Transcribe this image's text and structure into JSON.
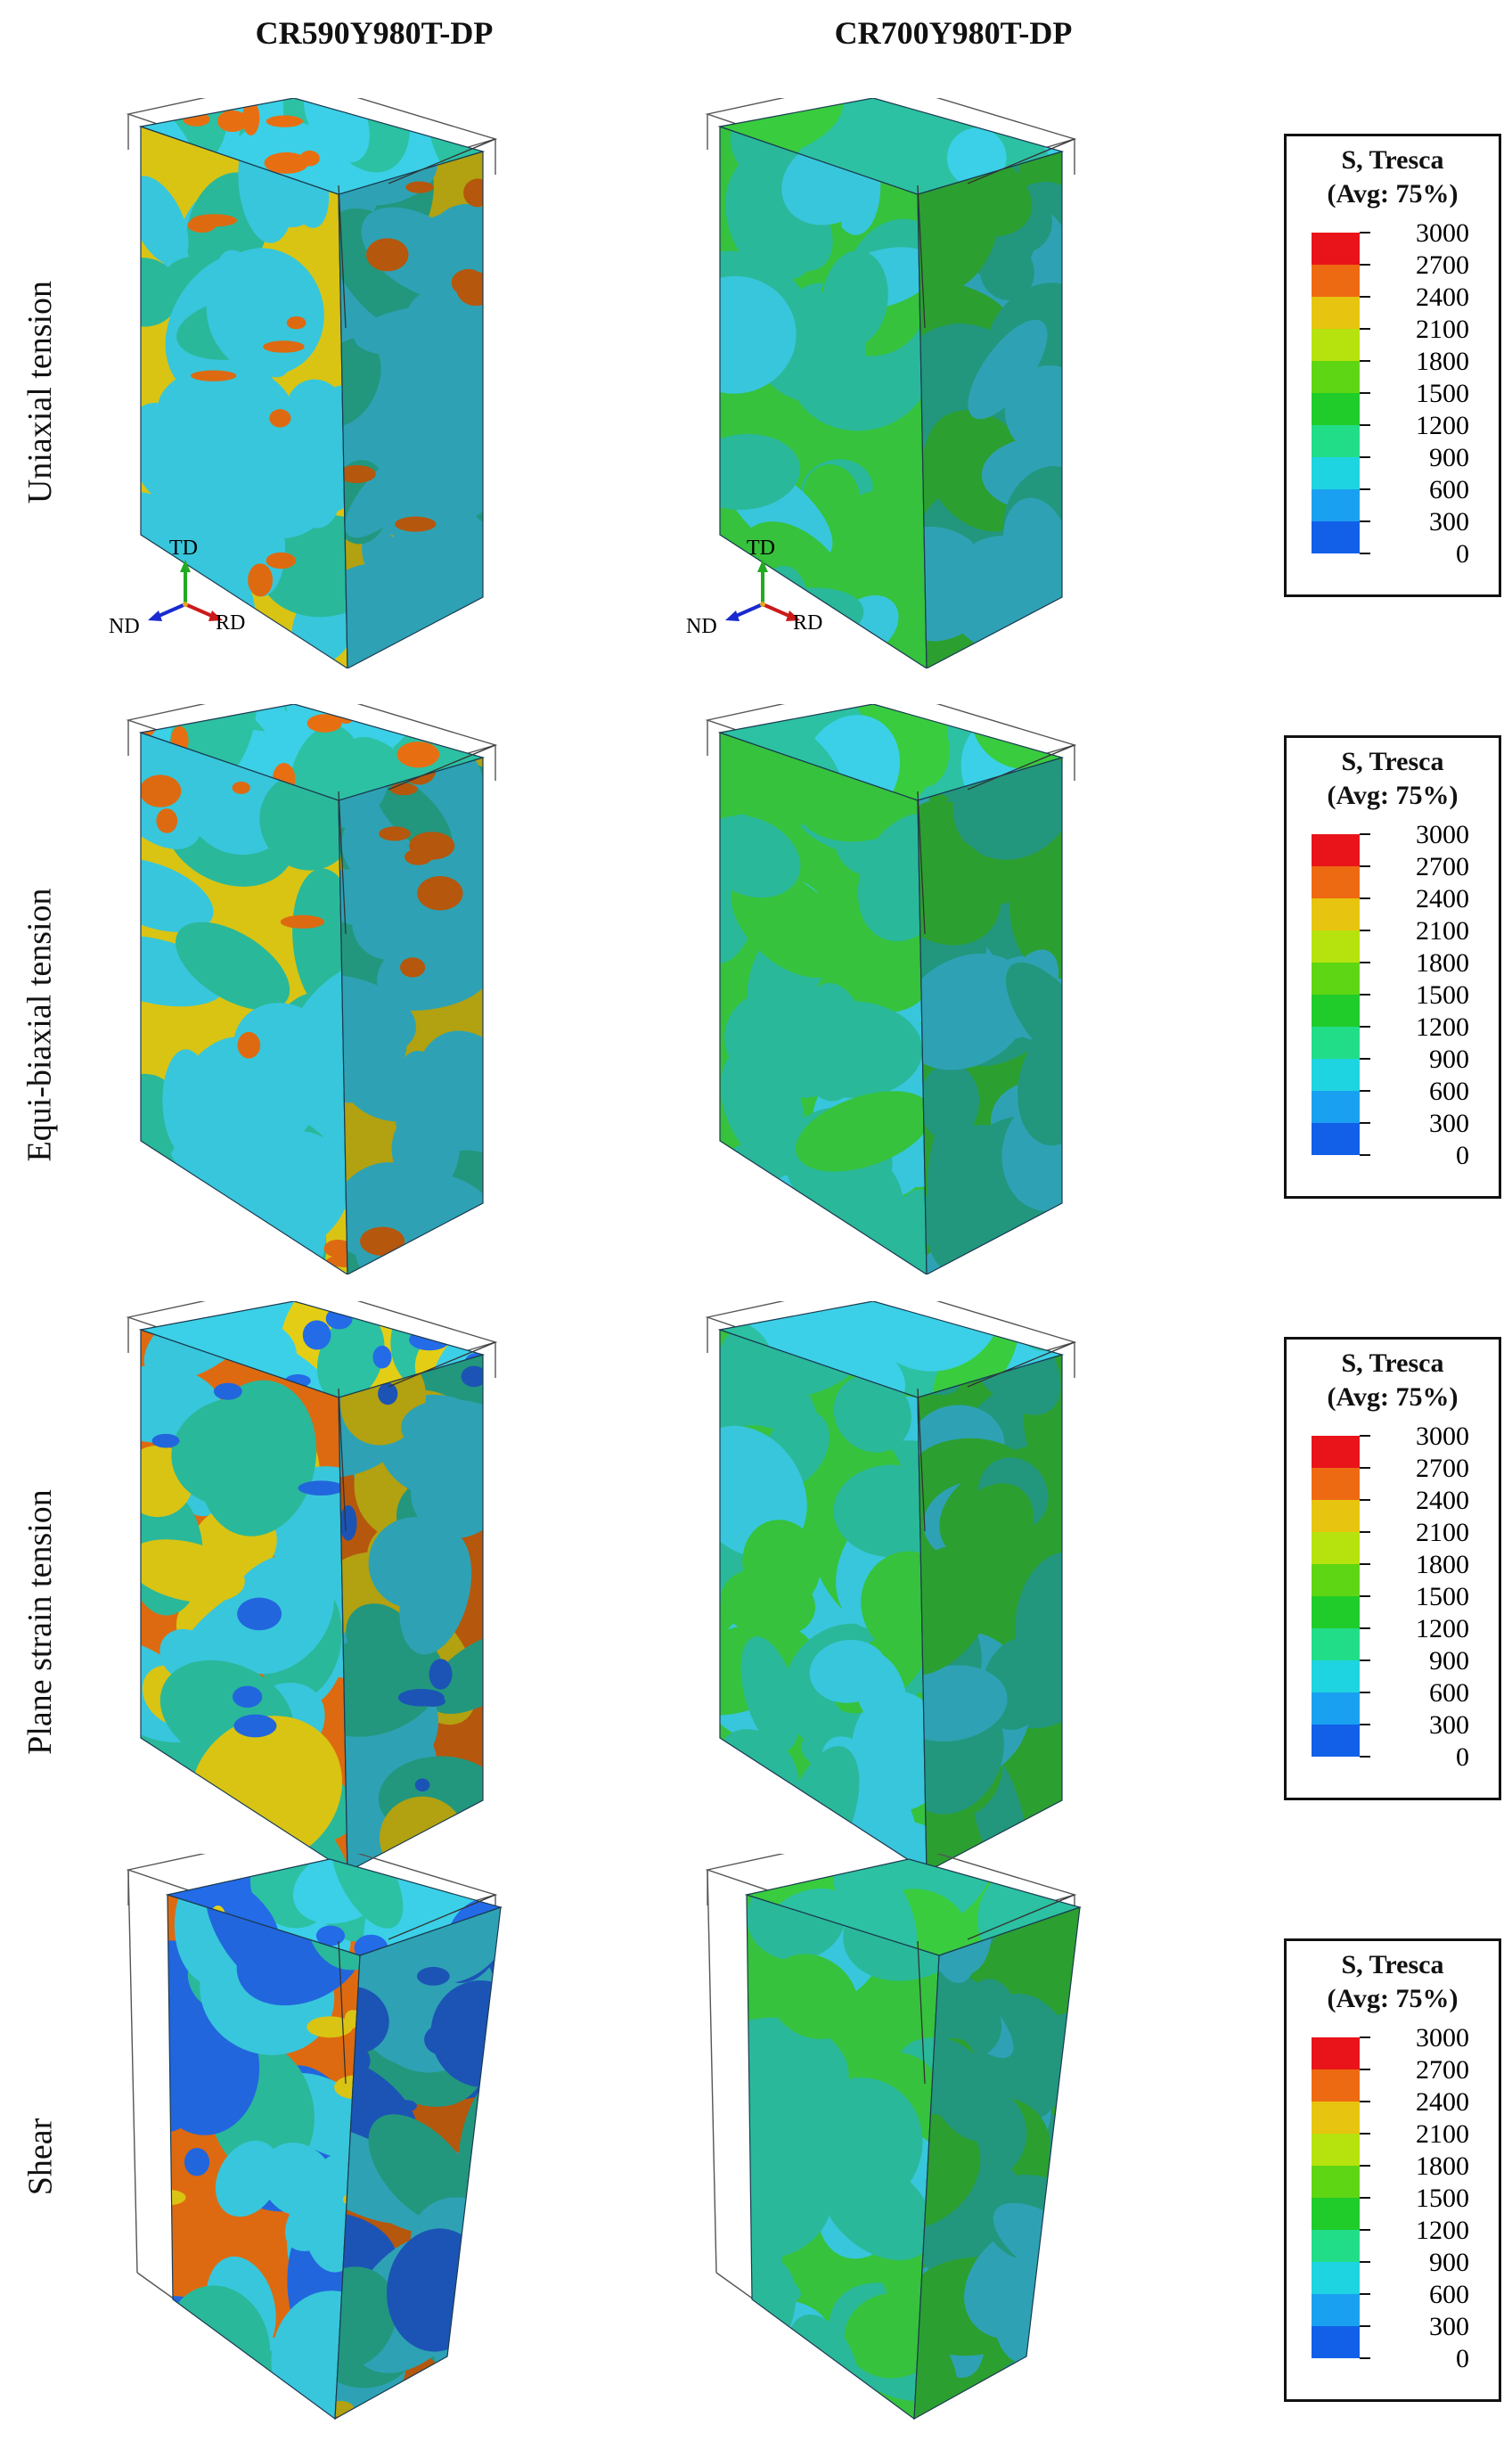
{
  "columns": [
    "CR590Y980T-DP",
    "CR700Y980T-DP"
  ],
  "rows": [
    {
      "label": "Uniaxial tension",
      "left_palette": "mixed-yellow",
      "right_palette": "green"
    },
    {
      "label": "Equi-biaxial tension",
      "left_palette": "mixed-yellow",
      "right_palette": "green"
    },
    {
      "label": "Plane strain tension",
      "left_palette": "mixed-orange",
      "right_palette": "green"
    },
    {
      "label": "Shear",
      "left_palette": "mixed-orange-blue",
      "right_palette": "green-shear"
    }
  ],
  "legend": {
    "title_line1": "S, Tresca",
    "title_line2": "(Avg: 75%)",
    "values": [
      "3000",
      "2700",
      "2400",
      "2100",
      "1800",
      "1500",
      "1200",
      "900",
      "600",
      "300",
      "0"
    ],
    "colors": [
      "#e8141a",
      "#ee6a12",
      "#e7c40f",
      "#b6e20d",
      "#5fd614",
      "#1fcc2a",
      "#22dd88",
      "#1ed4e0",
      "#1aa0f0",
      "#1260e8",
      "#0a18e0"
    ]
  },
  "triad": {
    "td": "TD",
    "nd": "ND",
    "rd": "RD"
  },
  "colors": {
    "cyan": "#38c6dc",
    "green": "#36c23c",
    "yellow": "#d9c414",
    "orange": "#dd6a10",
    "teal": "#2ab89a",
    "blue": "#2266dd"
  }
}
